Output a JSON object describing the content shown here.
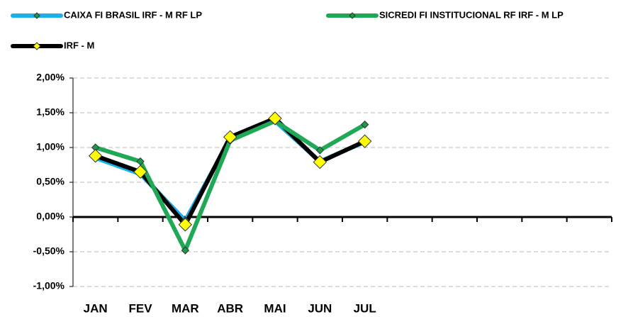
{
  "chart_data": {
    "type": "line",
    "categories": [
      "JAN",
      "FEV",
      "MAR",
      "ABR",
      "MAI",
      "JUN",
      "JUL",
      null,
      null,
      null,
      null,
      null
    ],
    "series": [
      {
        "name": "CAIXA FI BRASIL IRF - M RF LP",
        "color": "#1ab0ea",
        "marker": "#1a9a4a",
        "values": [
          0.85,
          0.62,
          -0.05,
          1.12,
          1.38,
          0.8,
          1.08,
          null,
          null,
          null,
          null,
          null
        ]
      },
      {
        "name": "SICREDI FI INSTITUCIONAL RF IRF - M LP",
        "color": "#1fa855",
        "marker": "#1a9a4a",
        "values": [
          1.0,
          0.8,
          -0.48,
          1.1,
          1.38,
          0.96,
          1.33,
          null,
          null,
          null,
          null,
          null
        ]
      },
      {
        "name": "IRF - M",
        "color": "#000000",
        "marker": "#ffff00",
        "values": [
          0.88,
          0.65,
          -0.11,
          1.15,
          1.42,
          0.79,
          1.09,
          null,
          null,
          null,
          null,
          null
        ]
      }
    ],
    "ylim": [
      -1,
      2
    ],
    "yticks": [
      {
        "value": -1,
        "label": "-1,00%"
      },
      {
        "value": -0.5,
        "label": "-0,50%"
      },
      {
        "value": 0,
        "label": "0,00%"
      },
      {
        "value": 0.5,
        "label": "0,50%"
      },
      {
        "value": 1,
        "label": "1,00%"
      },
      {
        "value": 1.5,
        "label": "1,50%"
      },
      {
        "value": 2,
        "label": "2,00%"
      }
    ],
    "grid": true,
    "legend": "top"
  }
}
